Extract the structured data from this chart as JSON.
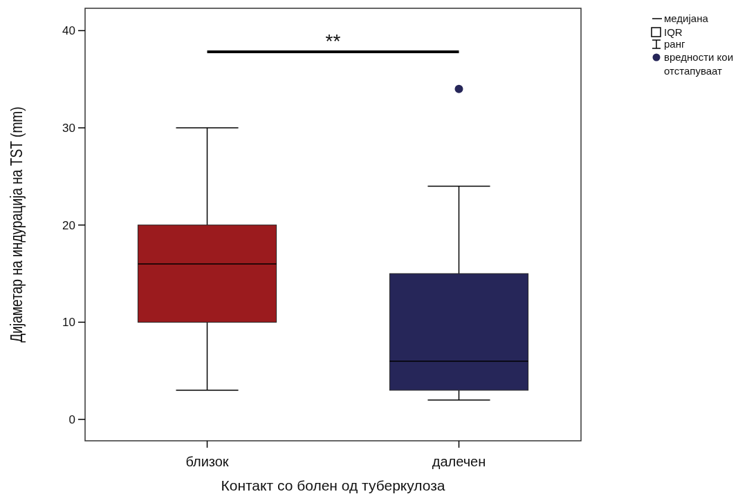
{
  "chart_data": {
    "type": "box",
    "categories": [
      "близок",
      "далечен"
    ],
    "series": [
      {
        "colors": [
          "#9b1b1e",
          "#262659"
        ],
        "boxes": [
          {
            "low": 3,
            "q1": 10,
            "median": 16,
            "q3": 20,
            "high": 30
          },
          {
            "low": 2,
            "q1": 3,
            "median": 6,
            "q3": 15,
            "high": 24,
            "outliers": [
              34
            ]
          }
        ]
      }
    ],
    "xlabel": "Контакт со болен од туберкулоза",
    "ylabel": "Дијаметар на индурација на TST (mm)",
    "ylim": [
      -2.2,
      42.3
    ],
    "yticks": [
      0,
      10,
      20,
      30,
      40
    ],
    "grid": false,
    "annotations": [
      "**",
      "медијана",
      "IQR",
      "ранг",
      "вредности кои отстапуваат"
    ]
  }
}
